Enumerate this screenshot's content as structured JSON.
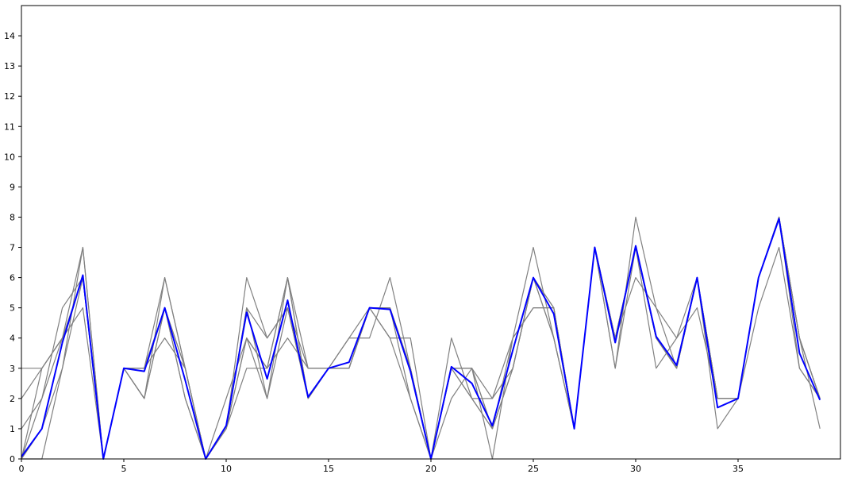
{
  "chart_data": {
    "type": "line",
    "title": "",
    "xlabel": "",
    "ylabel": "",
    "xlim": [
      0,
      40
    ],
    "ylim": [
      0,
      15
    ],
    "xticks": [
      0,
      5,
      10,
      15,
      20,
      25,
      30,
      35
    ],
    "yticks": [
      0,
      1,
      2,
      3,
      4,
      5,
      6,
      7,
      8,
      9,
      10,
      11,
      12,
      13,
      14
    ],
    "grid": false,
    "x": [
      0,
      1,
      2,
      3,
      4,
      5,
      6,
      7,
      8,
      9,
      10,
      11,
      12,
      13,
      14,
      15,
      16,
      17,
      18,
      19,
      20,
      21,
      22,
      23,
      24,
      25,
      26,
      27,
      28,
      29,
      30,
      31,
      32,
      33,
      34,
      35,
      36,
      37,
      38,
      39
    ],
    "series": [
      {
        "color": "#808080",
        "values": [
          0,
          0,
          3,
          7,
          0,
          3,
          3,
          6,
          3,
          0,
          1,
          6,
          4,
          5,
          3,
          3,
          4,
          4,
          6,
          3,
          0,
          3,
          3,
          0,
          4,
          7,
          4,
          1,
          7,
          3,
          8,
          5,
          3,
          6,
          2,
          2,
          6,
          8,
          4,
          1
        ]
      },
      {
        "color": "#808080",
        "values": [
          0,
          3,
          4,
          6,
          0,
          3,
          2,
          5,
          2,
          0,
          2,
          4,
          3,
          6,
          3,
          3,
          3,
          5,
          4,
          4,
          0,
          4,
          2,
          1,
          3,
          6,
          5,
          1,
          7,
          4,
          7,
          3,
          4,
          6,
          1,
          2,
          5,
          7,
          3,
          2
        ]
      },
      {
        "color": "#808080",
        "values": [
          1,
          2,
          5,
          6,
          0,
          3,
          3,
          4,
          3,
          0,
          1,
          3,
          3,
          4,
          3,
          3,
          4,
          5,
          5,
          2,
          0,
          3,
          3,
          2,
          4,
          5,
          5,
          1,
          7,
          4,
          6,
          5,
          4,
          5,
          2,
          2,
          6,
          8,
          4,
          2
        ]
      },
      {
        "color": "#808080",
        "values": [
          2,
          3,
          4,
          5,
          0,
          3,
          3,
          5,
          2,
          0,
          1,
          5,
          2,
          5,
          2,
          3,
          3,
          5,
          5,
          3,
          0,
          2,
          3,
          1,
          3,
          6,
          4,
          1,
          7,
          3,
          7,
          4,
          3,
          6,
          2,
          2,
          6,
          8,
          4,
          2
        ]
      },
      {
        "color": "#808080",
        "values": [
          0,
          1,
          3,
          6,
          0,
          3,
          2,
          6,
          3,
          0,
          1,
          4,
          3,
          6,
          2,
          3,
          3,
          5,
          4,
          2,
          0,
          3,
          2,
          1,
          4,
          5,
          5,
          1,
          7,
          4,
          7,
          4,
          3,
          6,
          2,
          2,
          6,
          8,
          4,
          2
        ]
      },
      {
        "color": "#808080",
        "values": [
          3,
          3,
          4,
          6,
          0,
          3,
          2,
          5,
          3,
          0,
          1,
          5,
          4,
          5,
          2,
          3,
          3,
          5,
          5,
          3,
          0,
          3,
          2,
          2,
          3,
          6,
          4,
          1,
          7,
          4,
          7,
          4,
          3,
          6,
          2,
          2,
          6,
          8,
          3,
          2
        ]
      },
      {
        "color": "#808080",
        "values": [
          0,
          2,
          4,
          7,
          0,
          3,
          3,
          5,
          3,
          0,
          1,
          4,
          2,
          6,
          2,
          3,
          3,
          5,
          5,
          3,
          0,
          3,
          3,
          1,
          3,
          6,
          5,
          1,
          7,
          4,
          7,
          4,
          3,
          6,
          2,
          2,
          6,
          8,
          4,
          2
        ]
      },
      {
        "color": "#0000ff",
        "values": [
          0.07,
          1.0,
          3.85,
          6.08,
          0,
          3.0,
          2.9,
          5.0,
          2.6,
          0,
          1.1,
          4.85,
          2.65,
          5.25,
          2.05,
          3.0,
          3.2,
          5.0,
          4.95,
          2.9,
          0,
          3.05,
          2.5,
          1.1,
          3.6,
          6.0,
          4.8,
          1.0,
          7.0,
          3.85,
          7.05,
          4.05,
          3.1,
          6.0,
          1.7,
          2.0,
          6.0,
          7.95,
          3.5,
          1.95
        ]
      }
    ]
  }
}
